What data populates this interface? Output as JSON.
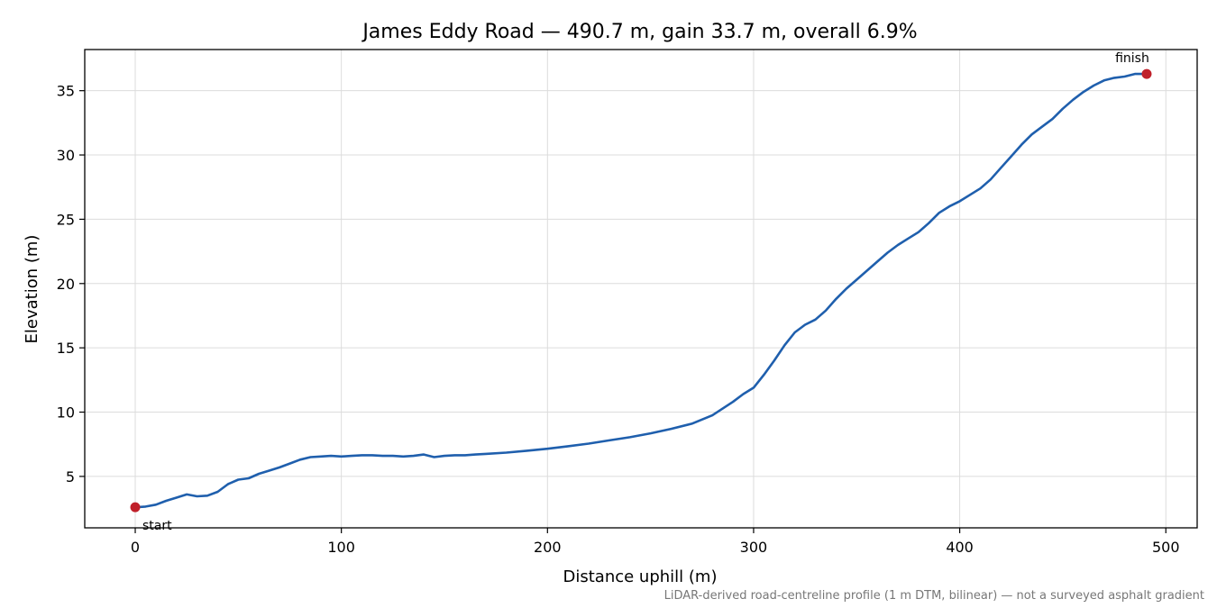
{
  "chart_data": {
    "type": "line",
    "title": "James Eddy Road — 490.7 m, gain 33.7 m, overall 6.9%",
    "xlabel": "Distance uphill (m)",
    "ylabel": "Elevation (m)",
    "footnote": "LiDAR-derived road-centreline profile (1 m DTM, bilinear) — not a surveyed asphalt gradient",
    "xlim": [
      -24.5,
      515.2
    ],
    "ylim": [
      1.0,
      38.2
    ],
    "grid": true,
    "x_ticks": [
      0,
      100,
      200,
      300,
      400,
      500
    ],
    "y_ticks": [
      5,
      10,
      15,
      20,
      25,
      30,
      35
    ],
    "line_color": "#1f5fad",
    "marker_color": "#c0202a",
    "series": [
      {
        "x": [
          0,
          5,
          10,
          15,
          20,
          25,
          30,
          35,
          40,
          45,
          50,
          55,
          60,
          65,
          70,
          75,
          80,
          85,
          90,
          95,
          100,
          105,
          110,
          115,
          120,
          125,
          130,
          135,
          140,
          145,
          150,
          155,
          160,
          165,
          170,
          180,
          190,
          200,
          210,
          220,
          230,
          240,
          250,
          260,
          270,
          280,
          290,
          295,
          300,
          305,
          310,
          315,
          320,
          325,
          330,
          335,
          340,
          345,
          350,
          355,
          360,
          365,
          370,
          375,
          380,
          385,
          390,
          395,
          400,
          405,
          410,
          415,
          420,
          425,
          430,
          435,
          440,
          445,
          450,
          455,
          460,
          465,
          470,
          475,
          480,
          485,
          490.7
        ],
        "y": [
          2.6,
          2.65,
          2.8,
          3.1,
          3.35,
          3.6,
          3.45,
          3.5,
          3.8,
          4.4,
          4.75,
          4.85,
          5.2,
          5.45,
          5.7,
          6.0,
          6.3,
          6.5,
          6.55,
          6.6,
          6.55,
          6.6,
          6.65,
          6.65,
          6.6,
          6.6,
          6.55,
          6.6,
          6.7,
          6.5,
          6.6,
          6.65,
          6.65,
          6.7,
          6.75,
          6.85,
          7.0,
          7.15,
          7.35,
          7.55,
          7.8,
          8.05,
          8.35,
          8.7,
          9.1,
          9.75,
          10.8,
          11.4,
          11.9,
          12.9,
          14.0,
          15.2,
          16.2,
          16.8,
          17.2,
          17.9,
          18.8,
          19.6,
          20.3,
          21.0,
          21.7,
          22.4,
          23.0,
          23.5,
          24.0,
          24.7,
          25.5,
          26.0,
          26.4,
          26.9,
          27.4,
          28.1,
          29.0,
          29.9,
          30.8,
          31.6,
          32.2,
          32.8,
          33.6,
          34.3,
          34.9,
          35.4,
          35.8,
          36.0,
          36.1,
          36.3,
          36.3
        ]
      }
    ],
    "annotations": [
      {
        "text": "start",
        "x": 0,
        "y": 2.6
      },
      {
        "text": "finish",
        "x": 490.7,
        "y": 36.3
      }
    ]
  }
}
